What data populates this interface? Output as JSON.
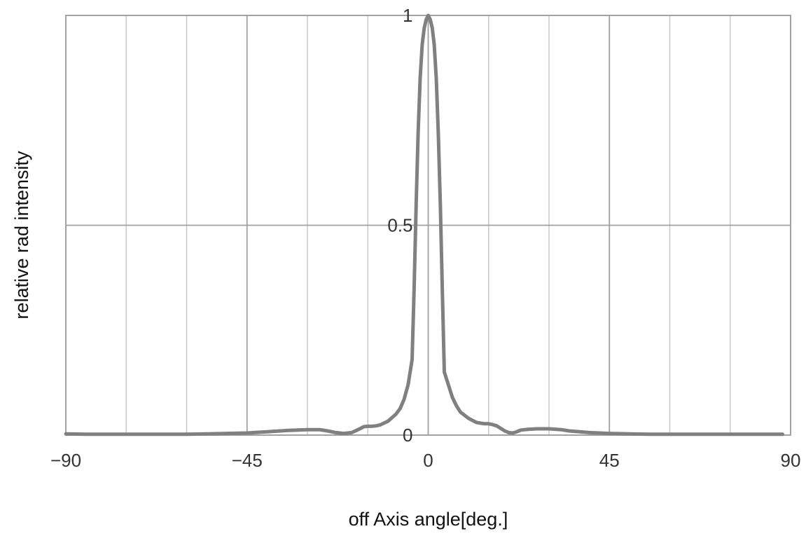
{
  "chart_data": {
    "type": "line",
    "xlabel": "off Axis angle[deg.]",
    "ylabel": "relative rad intensity",
    "xlim": [
      -90,
      90
    ],
    "ylim": [
      0,
      1
    ],
    "x_ticks": [
      -90,
      -45,
      0,
      45,
      90
    ],
    "x_tick_labels": [
      "−90",
      "−45",
      "0",
      "45",
      "90"
    ],
    "x_minor_gridlines": [
      -75,
      -60,
      -30,
      -15,
      15,
      30,
      60,
      75
    ],
    "y_ticks": [
      0,
      0.5,
      1
    ],
    "y_tick_labels": [
      "0",
      "0.5",
      "1"
    ],
    "grid": true,
    "legend": "none",
    "line_color": "#808080",
    "series": [
      {
        "x": [
          -90,
          -85,
          -80,
          -75,
          -70,
          -65,
          -60,
          -55,
          -50,
          -45,
          -40,
          -35,
          -30,
          -27,
          -25,
          -23,
          -21,
          -19,
          -17,
          -16,
          -15,
          -14,
          -13,
          -12,
          -10,
          -8,
          -7,
          -6,
          -5,
          -4,
          -3.5,
          -3,
          -2.5,
          -2,
          -1.5,
          -1,
          -0.5,
          0,
          0.5,
          1,
          1.5,
          2,
          2.5,
          3,
          3.5,
          4,
          5,
          6,
          7,
          8,
          10,
          12,
          14,
          15,
          16,
          17,
          18,
          19,
          20,
          21,
          22,
          23,
          25,
          27,
          30,
          33,
          35,
          40,
          45,
          50,
          55,
          60,
          65,
          70,
          75,
          80,
          85,
          88
        ],
        "y": [
          0.003,
          0.002,
          0.002,
          0.002,
          0.002,
          0.002,
          0.002,
          0.003,
          0.004,
          0.005,
          0.008,
          0.011,
          0.013,
          0.013,
          0.01,
          0.006,
          0.004,
          0.006,
          0.015,
          0.02,
          0.021,
          0.021,
          0.022,
          0.024,
          0.033,
          0.05,
          0.063,
          0.085,
          0.12,
          0.18,
          0.35,
          0.55,
          0.72,
          0.85,
          0.93,
          0.97,
          0.99,
          1.0,
          0.99,
          0.97,
          0.93,
          0.85,
          0.72,
          0.55,
          0.35,
          0.15,
          0.12,
          0.09,
          0.07,
          0.055,
          0.04,
          0.03,
          0.027,
          0.027,
          0.025,
          0.022,
          0.016,
          0.01,
          0.006,
          0.005,
          0.008,
          0.012,
          0.014,
          0.015,
          0.015,
          0.013,
          0.01,
          0.006,
          0.004,
          0.003,
          0.002,
          0.002,
          0.002,
          0.002,
          0.002,
          0.002,
          0.002,
          0.002
        ]
      }
    ]
  }
}
